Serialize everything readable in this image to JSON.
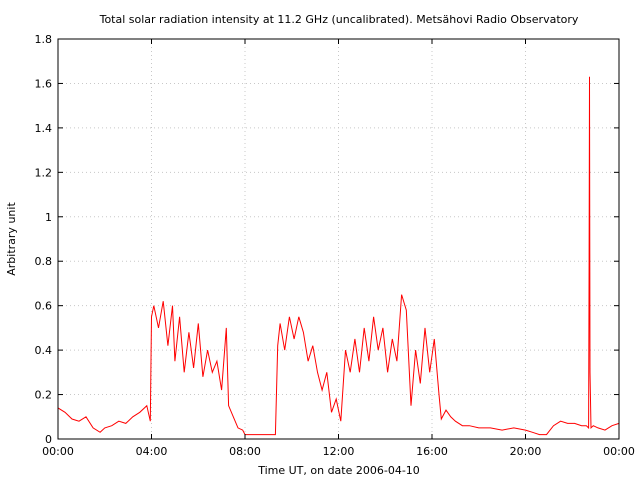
{
  "chart_data": {
    "type": "line",
    "title": "Total solar radiation intensity at 11.2 GHz (uncalibrated). Metsähovi Radio Observatory",
    "xlabel": "Time UT, on date 2006-04-10",
    "ylabel": "Arbitrary unit",
    "xlim": [
      0,
      24
    ],
    "ylim": [
      0,
      1.8
    ],
    "x_ticks": [
      0,
      4,
      8,
      12,
      16,
      20,
      24
    ],
    "x_tick_labels": [
      "00:00",
      "04:00",
      "08:00",
      "12:00",
      "16:00",
      "20:00",
      "00:00"
    ],
    "y_ticks": [
      0,
      0.2,
      0.4,
      0.6,
      0.8,
      1,
      1.2,
      1.4,
      1.6,
      1.8
    ],
    "y_tick_labels": [
      "0",
      "0.2",
      "0.4",
      "0.6",
      "0.8",
      "1",
      "1.2",
      "1.4",
      "1.6",
      "1.8"
    ],
    "grid": true,
    "series": [
      {
        "color": "#ff0000",
        "x_unit": "hours UT",
        "x": [
          0,
          0.3,
          0.6,
          0.9,
          1.2,
          1.5,
          1.8,
          2.0,
          2.3,
          2.6,
          2.9,
          3.2,
          3.5,
          3.8,
          3.95,
          4.0,
          4.1,
          4.3,
          4.5,
          4.7,
          4.9,
          5.0,
          5.2,
          5.4,
          5.6,
          5.8,
          6.0,
          6.2,
          6.4,
          6.6,
          6.8,
          7.0,
          7.2,
          7.3,
          7.5,
          7.7,
          7.9,
          8.0,
          8.2,
          8.5,
          9.0,
          9.3,
          9.4,
          9.5,
          9.7,
          9.9,
          10.1,
          10.3,
          10.5,
          10.7,
          10.9,
          11.1,
          11.3,
          11.5,
          11.7,
          11.9,
          12.1,
          12.3,
          12.5,
          12.7,
          12.9,
          13.1,
          13.3,
          13.5,
          13.7,
          13.9,
          14.1,
          14.3,
          14.5,
          14.7,
          14.9,
          15.1,
          15.3,
          15.5,
          15.7,
          15.9,
          16.1,
          16.3,
          16.4,
          16.6,
          16.8,
          17.0,
          17.3,
          17.6,
          18.0,
          18.5,
          19.0,
          19.5,
          20.0,
          20.3,
          20.6,
          20.9,
          21.2,
          21.5,
          21.8,
          22.1,
          22.4,
          22.6,
          22.7,
          22.72,
          22.74,
          22.76,
          22.8,
          22.9,
          23.1,
          23.4,
          23.7,
          24.0
        ],
        "y": [
          0.14,
          0.12,
          0.09,
          0.08,
          0.1,
          0.05,
          0.03,
          0.05,
          0.06,
          0.08,
          0.07,
          0.1,
          0.12,
          0.15,
          0.08,
          0.55,
          0.6,
          0.5,
          0.62,
          0.42,
          0.6,
          0.35,
          0.55,
          0.3,
          0.48,
          0.32,
          0.52,
          0.28,
          0.4,
          0.3,
          0.35,
          0.22,
          0.5,
          0.15,
          0.1,
          0.05,
          0.04,
          0.02,
          0.02,
          0.02,
          0.02,
          0.02,
          0.42,
          0.52,
          0.4,
          0.55,
          0.45,
          0.55,
          0.48,
          0.35,
          0.42,
          0.3,
          0.22,
          0.3,
          0.12,
          0.18,
          0.08,
          0.4,
          0.3,
          0.45,
          0.3,
          0.5,
          0.35,
          0.55,
          0.4,
          0.5,
          0.3,
          0.45,
          0.35,
          0.65,
          0.58,
          0.15,
          0.4,
          0.25,
          0.5,
          0.3,
          0.45,
          0.2,
          0.09,
          0.13,
          0.1,
          0.08,
          0.06,
          0.06,
          0.05,
          0.05,
          0.04,
          0.05,
          0.04,
          0.03,
          0.02,
          0.02,
          0.06,
          0.08,
          0.07,
          0.07,
          0.06,
          0.06,
          0.05,
          0.8,
          1.63,
          0.3,
          0.05,
          0.06,
          0.05,
          0.04,
          0.06,
          0.07
        ]
      }
    ]
  }
}
